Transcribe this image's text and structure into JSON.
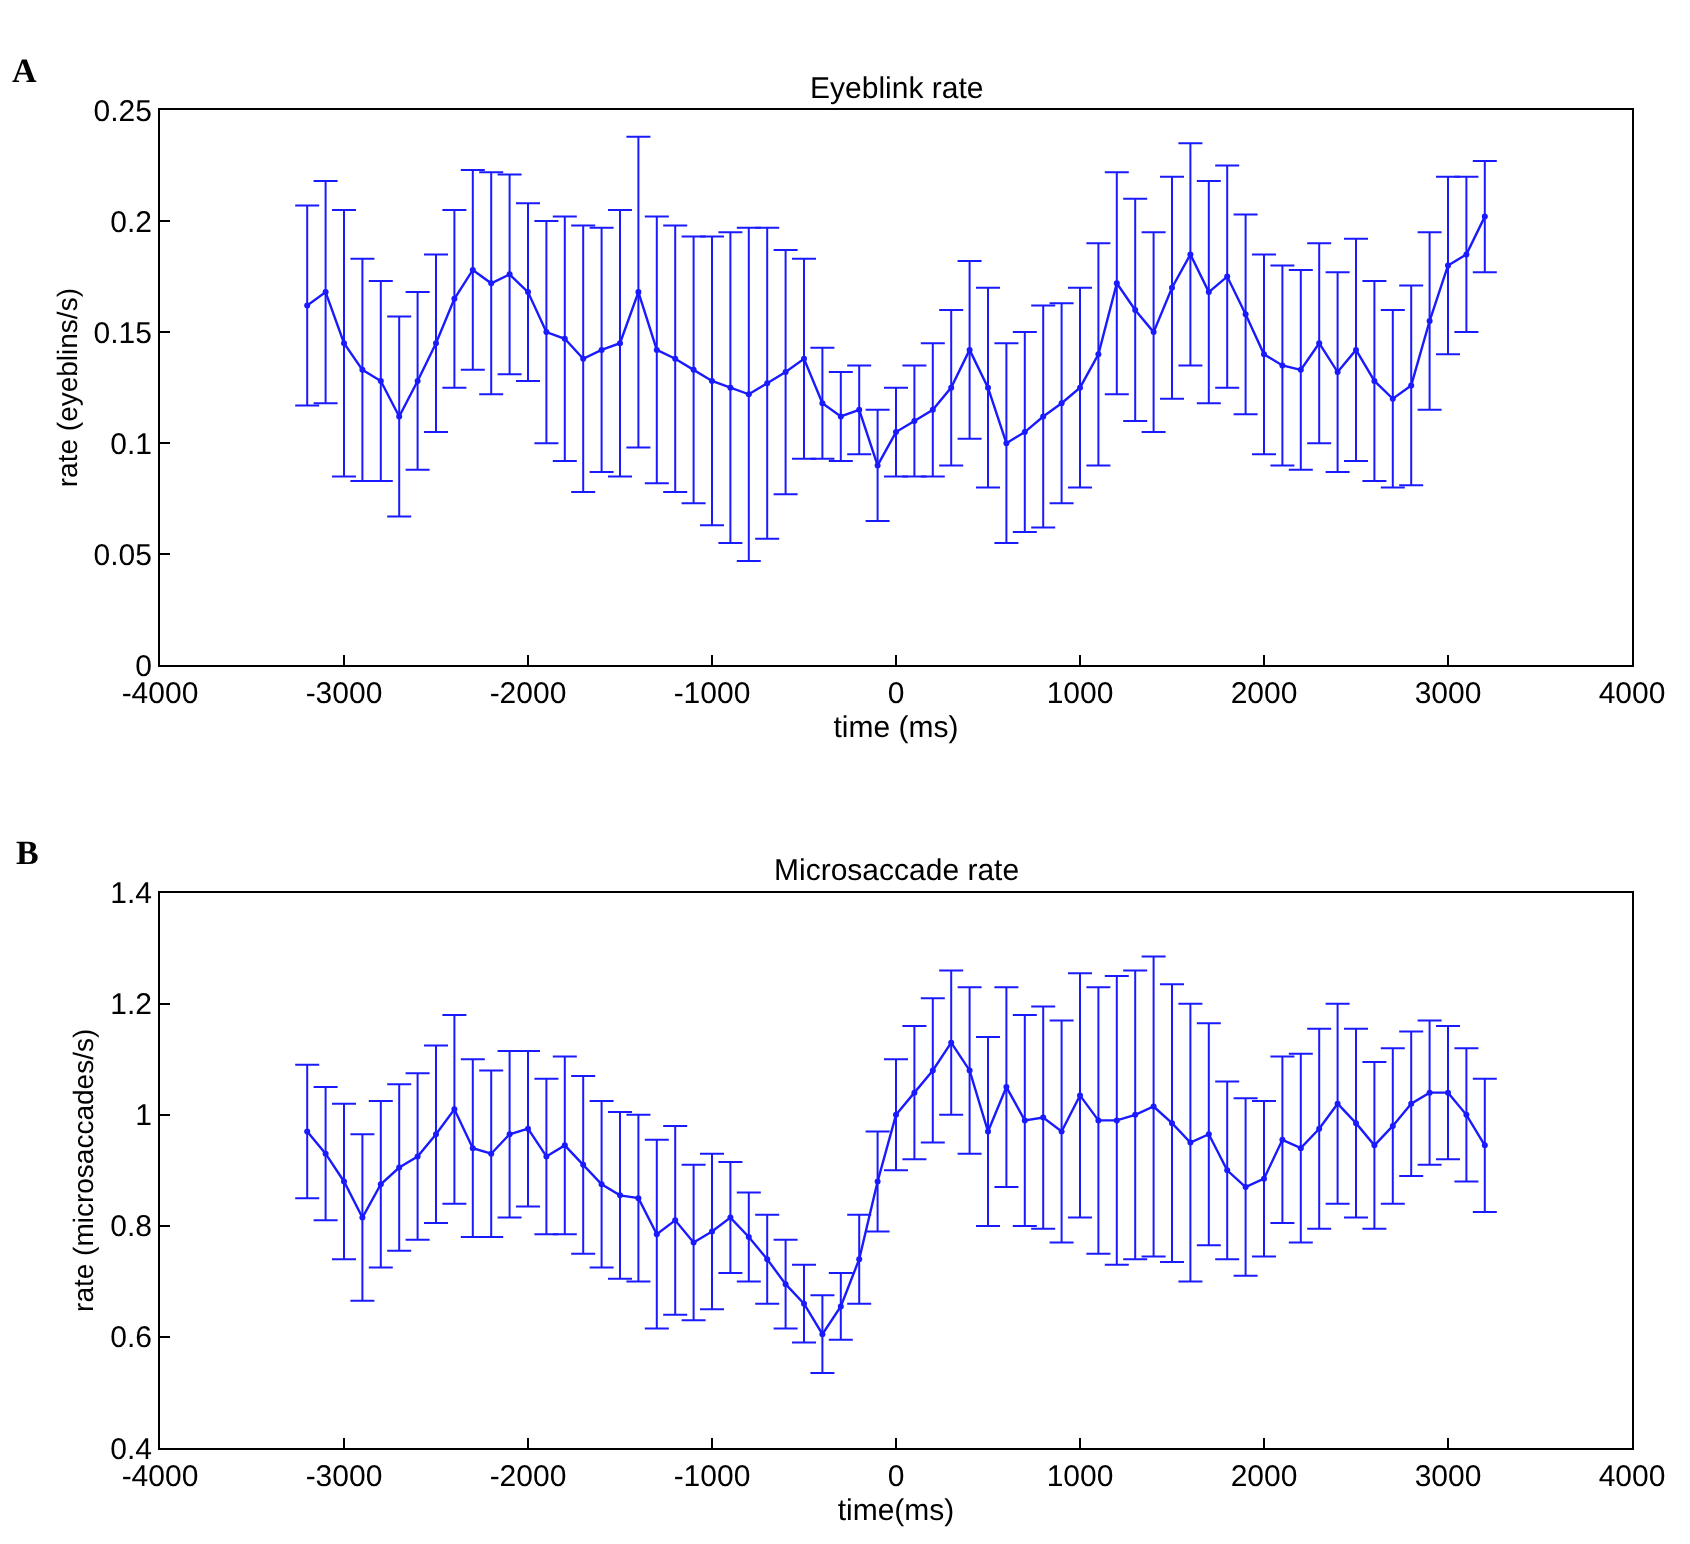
{
  "chart_data": [
    {
      "type": "line",
      "title": "Eyeblink rate",
      "xlabel": "time (ms)",
      "ylabel": "rate (eyeblins/s)",
      "annotations": [
        "A"
      ],
      "marker": "circle",
      "line_style": "solid",
      "xlim": [
        -4000,
        4000
      ],
      "xticks": [
        -4000,
        -3000,
        -2000,
        -1000,
        0,
        1000,
        2000,
        3000,
        4000
      ],
      "ylim": [
        0,
        0.25
      ],
      "yticks": [
        0,
        0.05,
        0.1,
        0.15,
        0.2,
        0.25
      ],
      "x": [
        -3200,
        -3100,
        -3000,
        -2900,
        -2800,
        -2700,
        -2600,
        -2500,
        -2400,
        -2300,
        -2200,
        -2100,
        -2000,
        -1900,
        -1800,
        -1700,
        -1600,
        -1500,
        -1400,
        -1300,
        -1200,
        -1100,
        -1000,
        -900,
        -800,
        -700,
        -600,
        -500,
        -400,
        -300,
        -200,
        -100,
        0,
        100,
        200,
        300,
        400,
        500,
        600,
        700,
        800,
        900,
        1000,
        1100,
        1200,
        1300,
        1400,
        1500,
        1600,
        1700,
        1800,
        1900,
        2000,
        2100,
        2200,
        2300,
        2400,
        2500,
        2600,
        2700,
        2800,
        2900,
        3000,
        3100,
        3200
      ],
      "series": [
        {
          "color": "#1a1aff",
          "values": [
            0.162,
            0.168,
            0.145,
            0.133,
            0.128,
            0.112,
            0.128,
            0.145,
            0.165,
            0.178,
            0.172,
            0.176,
            0.168,
            0.15,
            0.147,
            0.138,
            0.142,
            0.145,
            0.168,
            0.142,
            0.138,
            0.133,
            0.128,
            0.125,
            0.122,
            0.127,
            0.132,
            0.138,
            0.118,
            0.112,
            0.115,
            0.09,
            0.105,
            0.11,
            0.115,
            0.125,
            0.142,
            0.125,
            0.1,
            0.105,
            0.112,
            0.118,
            0.125,
            0.14,
            0.172,
            0.16,
            0.15,
            0.17,
            0.185,
            0.168,
            0.175,
            0.158,
            0.14,
            0.135,
            0.133,
            0.145,
            0.132,
            0.142,
            0.128,
            0.12,
            0.126,
            0.155,
            0.18,
            0.185,
            0.202
          ],
          "errors": [
            0.045,
            0.05,
            0.06,
            0.05,
            0.045,
            0.045,
            0.04,
            0.04,
            0.04,
            0.045,
            0.05,
            0.045,
            0.04,
            0.05,
            0.055,
            0.06,
            0.055,
            0.06,
            0.07,
            0.06,
            0.06,
            0.06,
            0.065,
            0.07,
            0.075,
            0.07,
            0.055,
            0.045,
            0.025,
            0.02,
            0.02,
            0.025,
            0.02,
            0.025,
            0.03,
            0.035,
            0.04,
            0.045,
            0.045,
            0.045,
            0.05,
            0.045,
            0.045,
            0.05,
            0.05,
            0.05,
            0.045,
            0.05,
            0.05,
            0.05,
            0.05,
            0.045,
            0.045,
            0.045,
            0.045,
            0.045,
            0.045,
            0.05,
            0.045,
            0.04,
            0.045,
            0.04,
            0.04,
            0.035,
            0.025
          ]
        }
      ]
    },
    {
      "type": "line",
      "title": "Microsaccade rate",
      "xlabel": "time(ms)",
      "ylabel": "rate (microsaccades/s)",
      "annotations": [
        "B"
      ],
      "marker": "circle",
      "line_style": "solid",
      "xlim": [
        -4000,
        4000
      ],
      "xticks": [
        -4000,
        -3000,
        -2000,
        -1000,
        0,
        1000,
        2000,
        3000,
        4000
      ],
      "ylim": [
        0.4,
        1.4
      ],
      "yticks": [
        0.4,
        0.6,
        0.8,
        1,
        1.2,
        1.4
      ],
      "x": [
        -3200,
        -3100,
        -3000,
        -2900,
        -2800,
        -2700,
        -2600,
        -2500,
        -2400,
        -2300,
        -2200,
        -2100,
        -2000,
        -1900,
        -1800,
        -1700,
        -1600,
        -1500,
        -1400,
        -1300,
        -1200,
        -1100,
        -1000,
        -900,
        -800,
        -700,
        -600,
        -500,
        -400,
        -300,
        -200,
        -100,
        0,
        100,
        200,
        300,
        400,
        500,
        600,
        700,
        800,
        900,
        1000,
        1100,
        1200,
        1300,
        1400,
        1500,
        1600,
        1700,
        1800,
        1900,
        2000,
        2100,
        2200,
        2300,
        2400,
        2500,
        2600,
        2700,
        2800,
        2900,
        3000,
        3100,
        3200
      ],
      "series": [
        {
          "color": "#1a1aff",
          "values": [
            0.97,
            0.93,
            0.88,
            0.815,
            0.875,
            0.905,
            0.925,
            0.965,
            1.01,
            0.94,
            0.93,
            0.965,
            0.975,
            0.925,
            0.945,
            0.91,
            0.875,
            0.855,
            0.85,
            0.785,
            0.81,
            0.77,
            0.79,
            0.815,
            0.78,
            0.74,
            0.695,
            0.66,
            0.605,
            0.655,
            0.74,
            0.88,
            1.0,
            1.04,
            1.08,
            1.13,
            1.08,
            0.97,
            1.05,
            0.99,
            0.995,
            0.97,
            1.035,
            0.99,
            0.99,
            1.0,
            1.015,
            0.985,
            0.95,
            0.965,
            0.9,
            0.87,
            0.885,
            0.955,
            0.94,
            0.975,
            1.02,
            0.985,
            0.945,
            0.98,
            1.02,
            1.04,
            1.04,
            1.0,
            0.945
          ],
          "errors": [
            0.12,
            0.12,
            0.14,
            0.15,
            0.15,
            0.15,
            0.15,
            0.16,
            0.17,
            0.16,
            0.15,
            0.15,
            0.14,
            0.14,
            0.16,
            0.16,
            0.15,
            0.15,
            0.15,
            0.17,
            0.17,
            0.14,
            0.14,
            0.1,
            0.08,
            0.08,
            0.08,
            0.07,
            0.07,
            0.06,
            0.08,
            0.09,
            0.1,
            0.12,
            0.13,
            0.13,
            0.15,
            0.17,
            0.18,
            0.19,
            0.2,
            0.2,
            0.22,
            0.24,
            0.26,
            0.26,
            0.27,
            0.25,
            0.25,
            0.2,
            0.16,
            0.16,
            0.14,
            0.15,
            0.17,
            0.18,
            0.18,
            0.17,
            0.15,
            0.14,
            0.13,
            0.13,
            0.12,
            0.12,
            0.12
          ]
        }
      ]
    }
  ]
}
